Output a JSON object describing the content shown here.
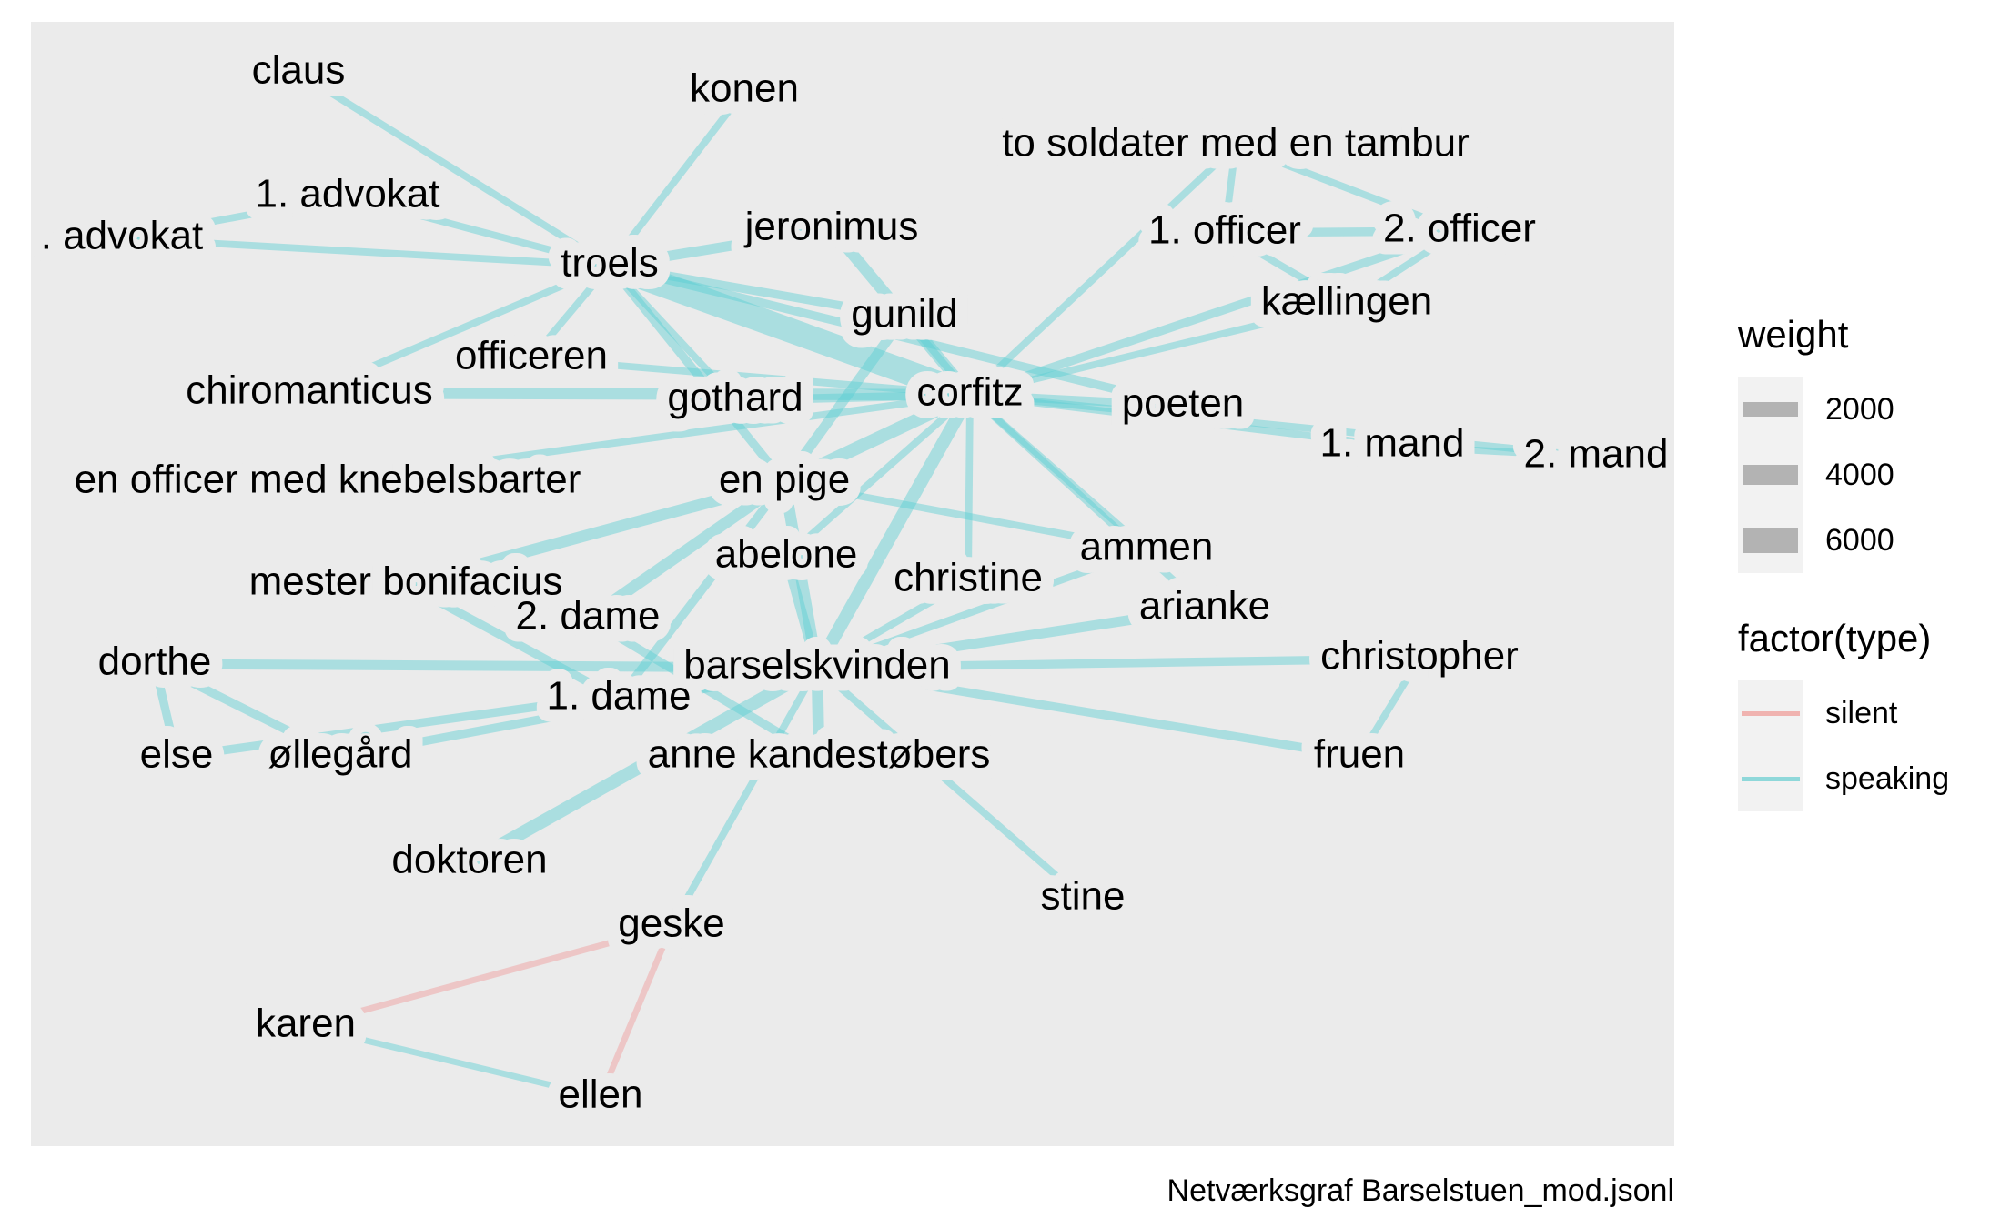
{
  "caption": "Netværksgraf Barselstuen_mod.jsonl",
  "legend": {
    "weight_title": "weight",
    "weight_items": [
      {
        "label": "2000",
        "value": 2000
      },
      {
        "label": "4000",
        "value": 4000
      },
      {
        "label": "6000",
        "value": 6000
      }
    ],
    "type_title": "factor(type)",
    "type_items": [
      {
        "label": "silent",
        "color": "#f0b3b0"
      },
      {
        "label": "speaking",
        "color": "#8fd8da"
      }
    ]
  },
  "colors": {
    "panel": "#ebebeb",
    "speaking": "#5ccfd2",
    "silent": "#ef9a9a"
  },
  "nodes": [
    {
      "id": "claus",
      "label": "claus"
    },
    {
      "id": "konen",
      "label": "konen"
    },
    {
      "id": "to_soldater",
      "label": "to soldater med en tambur"
    },
    {
      "id": "advokat1",
      "label": "1. advokat"
    },
    {
      "id": "advokat2",
      "label": ". advokat"
    },
    {
      "id": "troels",
      "label": "troels"
    },
    {
      "id": "jeronimus",
      "label": "jeronimus"
    },
    {
      "id": "officer1",
      "label": "1. officer"
    },
    {
      "id": "officer2",
      "label": "2. officer"
    },
    {
      "id": "kaellingen",
      "label": "kællingen"
    },
    {
      "id": "gunild",
      "label": "gunild"
    },
    {
      "id": "officeren",
      "label": "officeren"
    },
    {
      "id": "chiromanticus",
      "label": "chiromanticus"
    },
    {
      "id": "gothard",
      "label": "gothard"
    },
    {
      "id": "corfitz",
      "label": "corfitz"
    },
    {
      "id": "poeten",
      "label": "poeten"
    },
    {
      "id": "mand1",
      "label": "1. mand"
    },
    {
      "id": "mand2",
      "label": "2. mand"
    },
    {
      "id": "knebelsbarter",
      "label": "en officer med knebelsbarter"
    },
    {
      "id": "en_pige",
      "label": "en pige"
    },
    {
      "id": "ammen",
      "label": "ammen"
    },
    {
      "id": "abelone",
      "label": "abelone"
    },
    {
      "id": "mester_bonifacius",
      "label": "mester bonifacius"
    },
    {
      "id": "christine",
      "label": "christine"
    },
    {
      "id": "arianke",
      "label": "arianke"
    },
    {
      "id": "dame2",
      "label": "2. dame"
    },
    {
      "id": "dorthe",
      "label": "dorthe"
    },
    {
      "id": "barselskvinden",
      "label": "barselskvinden"
    },
    {
      "id": "christopher",
      "label": "christopher"
    },
    {
      "id": "dame1",
      "label": "1. dame"
    },
    {
      "id": "else",
      "label": "else"
    },
    {
      "id": "ollegard",
      "label": "øllegård"
    },
    {
      "id": "anne_kandestobers",
      "label": "anne kandestøbers"
    },
    {
      "id": "fruen",
      "label": "fruen"
    },
    {
      "id": "doktoren",
      "label": "doktoren"
    },
    {
      "id": "stine",
      "label": "stine"
    },
    {
      "id": "geske",
      "label": "geske"
    },
    {
      "id": "karen",
      "label": "karen"
    },
    {
      "id": "ellen",
      "label": "ellen"
    }
  ],
  "edges": [
    {
      "source": "claus",
      "target": "troels",
      "type": "speaking",
      "weight": 1500
    },
    {
      "source": "konen",
      "target": "troels",
      "type": "speaking",
      "weight": 1500
    },
    {
      "source": "advokat1",
      "target": "troels",
      "type": "speaking",
      "weight": 1500
    },
    {
      "source": "advokat2",
      "target": "troels",
      "type": "speaking",
      "weight": 1500
    },
    {
      "source": "advokat1",
      "target": "advokat2",
      "type": "speaking",
      "weight": 1500
    },
    {
      "source": "troels",
      "target": "jeronimus",
      "type": "speaking",
      "weight": 2500
    },
    {
      "source": "troels",
      "target": "gunild",
      "type": "speaking",
      "weight": 2000
    },
    {
      "source": "troels",
      "target": "corfitz",
      "type": "speaking",
      "weight": 7500
    },
    {
      "source": "troels",
      "target": "poeten",
      "type": "speaking",
      "weight": 2000
    },
    {
      "source": "troels",
      "target": "chiromanticus",
      "type": "speaking",
      "weight": 1500
    },
    {
      "source": "troels",
      "target": "officeren",
      "type": "speaking",
      "weight": 1500
    },
    {
      "source": "troels",
      "target": "gothard",
      "type": "speaking",
      "weight": 1500
    },
    {
      "source": "troels",
      "target": "en_pige",
      "type": "speaking",
      "weight": 2000
    },
    {
      "source": "jeronimus",
      "target": "corfitz",
      "type": "speaking",
      "weight": 3000
    },
    {
      "source": "to_soldater",
      "target": "corfitz",
      "type": "speaking",
      "weight": 1500
    },
    {
      "source": "to_soldater",
      "target": "officer1",
      "type": "speaking",
      "weight": 1500
    },
    {
      "source": "to_soldater",
      "target": "officer2",
      "type": "speaking",
      "weight": 1500
    },
    {
      "source": "officer1",
      "target": "officer2",
      "type": "speaking",
      "weight": 2000
    },
    {
      "source": "officer1",
      "target": "kaellingen",
      "type": "speaking",
      "weight": 1500
    },
    {
      "source": "officer2",
      "target": "kaellingen",
      "type": "speaking",
      "weight": 1500
    },
    {
      "source": "officer2",
      "target": "corfitz",
      "type": "speaking",
      "weight": 2000
    },
    {
      "source": "kaellingen",
      "target": "corfitz",
      "type": "speaking",
      "weight": 1500
    },
    {
      "source": "gunild",
      "target": "corfitz",
      "type": "speaking",
      "weight": 1500
    },
    {
      "source": "gunild",
      "target": "en_pige",
      "type": "speaking",
      "weight": 2500
    },
    {
      "source": "chiromanticus",
      "target": "corfitz",
      "type": "speaking",
      "weight": 3000
    },
    {
      "source": "officeren",
      "target": "corfitz",
      "type": "speaking",
      "weight": 1500
    },
    {
      "source": "knebelsbarter",
      "target": "corfitz",
      "type": "speaking",
      "weight": 1500
    },
    {
      "source": "gothard",
      "target": "corfitz",
      "type": "speaking",
      "weight": 2000
    },
    {
      "source": "corfitz",
      "target": "poeten",
      "type": "speaking",
      "weight": 2000
    },
    {
      "source": "corfitz",
      "target": "mand1",
      "type": "speaking",
      "weight": 1500
    },
    {
      "source": "corfitz",
      "target": "mand2",
      "type": "speaking",
      "weight": 1500
    },
    {
      "source": "mand1",
      "target": "mand2",
      "type": "speaking",
      "weight": 1500
    },
    {
      "source": "corfitz",
      "target": "en_pige",
      "type": "speaking",
      "weight": 3500
    },
    {
      "source": "corfitz",
      "target": "ammen",
      "type": "speaking",
      "weight": 1500
    },
    {
      "source": "corfitz",
      "target": "arianke",
      "type": "speaking",
      "weight": 1500
    },
    {
      "source": "corfitz",
      "target": "abelone",
      "type": "speaking",
      "weight": 1500
    },
    {
      "source": "corfitz",
      "target": "christine",
      "type": "speaking",
      "weight": 1500
    },
    {
      "source": "corfitz",
      "target": "barselskvinden",
      "type": "speaking",
      "weight": 3500
    },
    {
      "source": "en_pige",
      "target": "mester_bonifacius",
      "type": "speaking",
      "weight": 3000
    },
    {
      "source": "en_pige",
      "target": "dame2",
      "type": "speaking",
      "weight": 3000
    },
    {
      "source": "en_pige",
      "target": "dame1",
      "type": "speaking",
      "weight": 2000
    },
    {
      "source": "en_pige",
      "target": "barselskvinden",
      "type": "speaking",
      "weight": 3000
    },
    {
      "source": "en_pige",
      "target": "ammen",
      "type": "speaking",
      "weight": 1500
    },
    {
      "source": "mester_bonifacius",
      "target": "dame1",
      "type": "speaking",
      "weight": 2000
    },
    {
      "source": "dame2",
      "target": "anne_kandestobers",
      "type": "speaking",
      "weight": 2000
    },
    {
      "source": "dorthe",
      "target": "barselskvinden",
      "type": "speaking",
      "weight": 2500
    },
    {
      "source": "dorthe",
      "target": "else",
      "type": "speaking",
      "weight": 2000
    },
    {
      "source": "dorthe",
      "target": "ollegard",
      "type": "speaking",
      "weight": 2000
    },
    {
      "source": "else",
      "target": "barselskvinden",
      "type": "speaking",
      "weight": 2000
    },
    {
      "source": "ollegard",
      "target": "barselskvinden",
      "type": "speaking",
      "weight": 2000
    },
    {
      "source": "barselskvinden",
      "target": "christine",
      "type": "speaking",
      "weight": 1500
    },
    {
      "source": "barselskvinden",
      "target": "ammen",
      "type": "speaking",
      "weight": 1500
    },
    {
      "source": "barselskvinden",
      "target": "arianke",
      "type": "speaking",
      "weight": 2500
    },
    {
      "source": "barselskvinden",
      "target": "christopher",
      "type": "speaking",
      "weight": 2000
    },
    {
      "source": "barselskvinden",
      "target": "fruen",
      "type": "speaking",
      "weight": 2000
    },
    {
      "source": "christopher",
      "target": "fruen",
      "type": "speaking",
      "weight": 1500
    },
    {
      "source": "barselskvinden",
      "target": "anne_kandestobers",
      "type": "speaking",
      "weight": 3000
    },
    {
      "source": "barselskvinden",
      "target": "doktoren",
      "type": "speaking",
      "weight": 3500
    },
    {
      "source": "barselskvinden",
      "target": "stine",
      "type": "speaking",
      "weight": 1500
    },
    {
      "source": "barselskvinden",
      "target": "geske",
      "type": "speaking",
      "weight": 1500
    },
    {
      "source": "abelone",
      "target": "barselskvinden",
      "type": "speaking",
      "weight": 2500
    },
    {
      "source": "karen",
      "target": "geske",
      "type": "silent",
      "weight": 1200
    },
    {
      "source": "geske",
      "target": "ellen",
      "type": "silent",
      "weight": 1200
    },
    {
      "source": "karen",
      "target": "ellen",
      "type": "speaking",
      "weight": 1200
    }
  ]
}
